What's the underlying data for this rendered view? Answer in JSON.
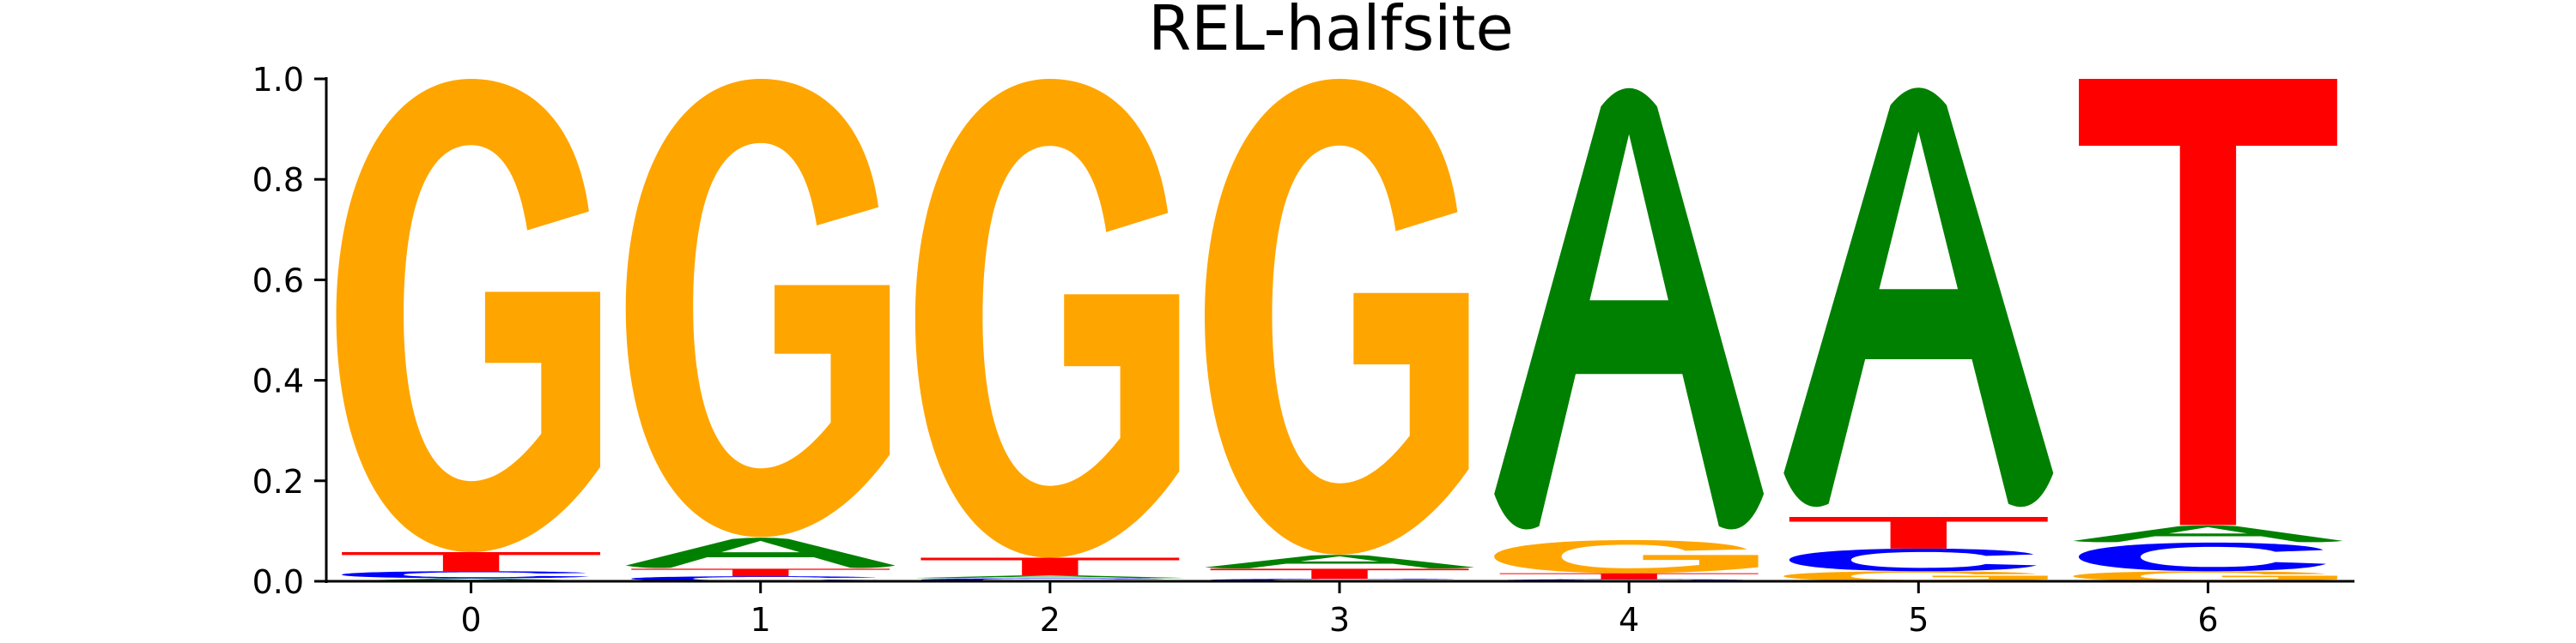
{
  "chart_data": {
    "type": "sequence-logo",
    "title": "REL-halfsite",
    "xlabel": "",
    "ylabel": "",
    "ylim": [
      0,
      1
    ],
    "y_ticks": [
      "0.0",
      "0.2",
      "0.4",
      "0.6",
      "0.8",
      "1.0"
    ],
    "x_ticks": [
      "0",
      "1",
      "2",
      "3",
      "4",
      "5",
      "6"
    ],
    "colors": {
      "A": "#008000",
      "C": "#0000ff",
      "G": "#ffa500",
      "T": "#ff0000"
    },
    "positions": [
      {
        "position": "0",
        "stack": [
          {
            "letter": "A",
            "value": 0.006
          },
          {
            "letter": "C",
            "value": 0.014
          },
          {
            "letter": "T",
            "value": 0.038
          },
          {
            "letter": "G",
            "value": 0.942
          }
        ]
      },
      {
        "position": "1",
        "stack": [
          {
            "letter": "C",
            "value": 0.01
          },
          {
            "letter": "T",
            "value": 0.015
          },
          {
            "letter": "A",
            "value": 0.063
          },
          {
            "letter": "G",
            "value": 0.912
          }
        ]
      },
      {
        "position": "2",
        "stack": [
          {
            "letter": "C",
            "value": 0.006
          },
          {
            "letter": "A",
            "value": 0.006
          },
          {
            "letter": "T",
            "value": 0.035
          },
          {
            "letter": "G",
            "value": 0.953
          }
        ]
      },
      {
        "position": "3",
        "stack": [
          {
            "letter": "C",
            "value": 0.005
          },
          {
            "letter": "T",
            "value": 0.02
          },
          {
            "letter": "A",
            "value": 0.028
          },
          {
            "letter": "G",
            "value": 0.947
          }
        ]
      },
      {
        "position": "4",
        "stack": [
          {
            "letter": "C",
            "value": 0.004
          },
          {
            "letter": "T",
            "value": 0.012
          },
          {
            "letter": "G",
            "value": 0.066
          },
          {
            "letter": "A",
            "value": 0.918
          }
        ]
      },
      {
        "position": "5",
        "stack": [
          {
            "letter": "G",
            "value": 0.02
          },
          {
            "letter": "C",
            "value": 0.045
          },
          {
            "letter": "T",
            "value": 0.063
          },
          {
            "letter": "A",
            "value": 0.872
          }
        ]
      },
      {
        "position": "6",
        "stack": [
          {
            "letter": "G",
            "value": 0.02
          },
          {
            "letter": "C",
            "value": 0.057
          },
          {
            "letter": "A",
            "value": 0.035
          },
          {
            "letter": "T",
            "value": 0.888
          }
        ]
      }
    ]
  }
}
